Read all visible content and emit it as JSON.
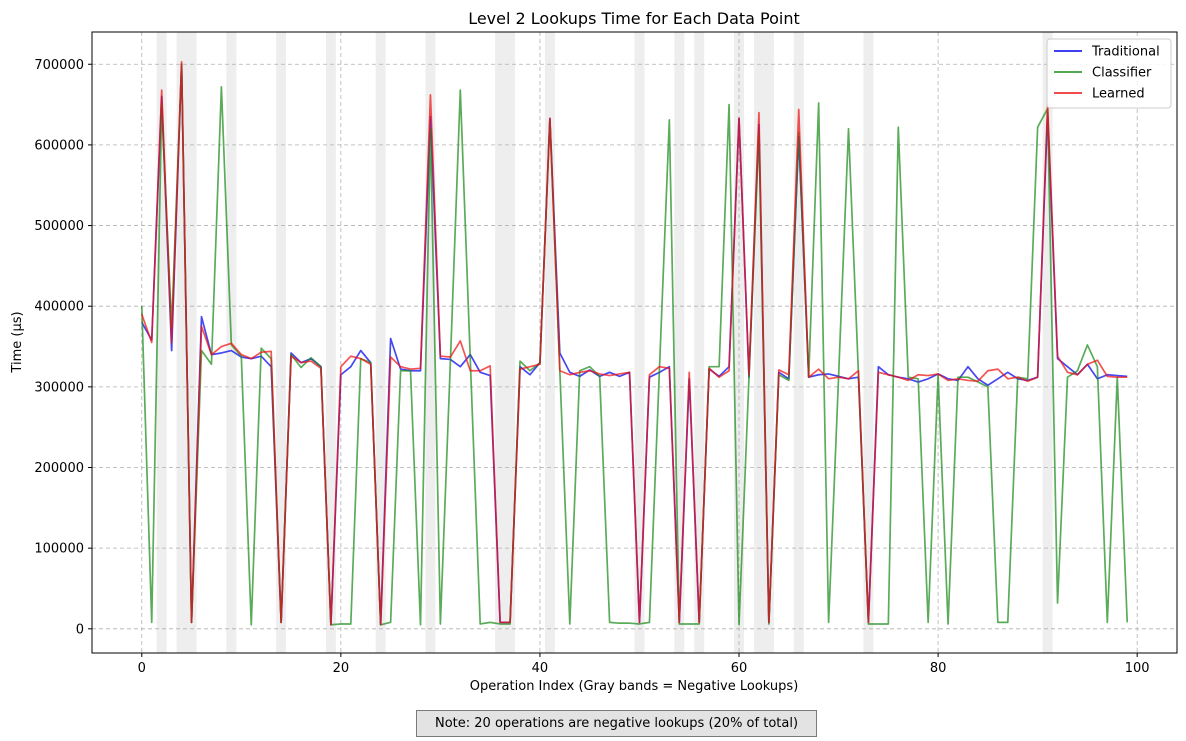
{
  "chart_data": {
    "type": "line",
    "title": "Level 2 Lookups Time for Each Data Point",
    "xlabel": "Operation Index (Gray bands = Negative Lookups)",
    "ylabel": "Time (µs)",
    "xlim": [
      -5,
      104
    ],
    "ylim": [
      -30000,
      740000
    ],
    "xticks": [
      0,
      20,
      40,
      60,
      80,
      100
    ],
    "yticks": [
      0,
      100000,
      200000,
      300000,
      400000,
      500000,
      600000,
      700000
    ],
    "grid": true,
    "legend_position": "top-right",
    "negative_lookup_indices": [
      2,
      4,
      5,
      9,
      14,
      19,
      24,
      29,
      36,
      37,
      41,
      50,
      54,
      56,
      60,
      62,
      63,
      66,
      73,
      91
    ],
    "x": [
      0,
      1,
      2,
      3,
      4,
      5,
      6,
      7,
      8,
      9,
      10,
      11,
      12,
      13,
      14,
      15,
      16,
      17,
      18,
      19,
      20,
      21,
      22,
      23,
      24,
      25,
      26,
      27,
      28,
      29,
      30,
      31,
      32,
      33,
      34,
      35,
      36,
      37,
      38,
      39,
      40,
      41,
      42,
      43,
      44,
      45,
      46,
      47,
      48,
      49,
      50,
      51,
      52,
      53,
      54,
      55,
      56,
      57,
      58,
      59,
      60,
      61,
      62,
      63,
      64,
      65,
      66,
      67,
      68,
      69,
      70,
      71,
      72,
      73,
      74,
      75,
      76,
      77,
      78,
      79,
      80,
      81,
      82,
      83,
      84,
      85,
      86,
      87,
      88,
      89,
      90,
      91,
      92,
      93,
      94,
      95,
      96,
      97,
      98,
      99
    ],
    "series": [
      {
        "name": "Traditional",
        "color": "#0000ee",
        "values": [
          380000,
          358000,
          660000,
          345000,
          700000,
          8000,
          387000,
          340000,
          342000,
          345000,
          337000,
          335000,
          338000,
          325000,
          8000,
          342000,
          330000,
          335000,
          325000,
          5000,
          315000,
          325000,
          345000,
          330000,
          5000,
          360000,
          322000,
          320000,
          320000,
          635000,
          335000,
          334000,
          325000,
          340000,
          318000,
          314000,
          8000,
          8000,
          325000,
          315000,
          330000,
          633000,
          342000,
          318000,
          313000,
          321000,
          313000,
          318000,
          313000,
          318000,
          8000,
          312000,
          318000,
          325000,
          8000,
          310000,
          8000,
          322000,
          313000,
          325000,
          633000,
          312000,
          625000,
          8000,
          318000,
          310000,
          610000,
          312000,
          315000,
          316000,
          313000,
          310000,
          312000,
          8000,
          325000,
          315000,
          312000,
          310000,
          306000,
          310000,
          316000,
          310000,
          308000,
          325000,
          310000,
          302000,
          310000,
          318000,
          310000,
          308000,
          312000,
          640000,
          335000,
          325000,
          315000,
          328000,
          310000,
          315000,
          314000,
          313000
        ]
      },
      {
        "name": "Classifier",
        "color": "#1a8a1a",
        "values": [
          400000,
          8000,
          650000,
          375000,
          700000,
          8000,
          345000,
          328000,
          672000,
          352000,
          338000,
          5000,
          348000,
          335000,
          8000,
          340000,
          324000,
          336000,
          325000,
          5000,
          6000,
          6000,
          335000,
          330000,
          5000,
          8000,
          320000,
          320000,
          5000,
          620000,
          6000,
          330000,
          668000,
          335000,
          6000,
          8000,
          6000,
          6000,
          332000,
          320000,
          330000,
          630000,
          320000,
          6000,
          320000,
          325000,
          313000,
          8000,
          7000,
          7000,
          6000,
          8000,
          320000,
          631000,
          6000,
          6000,
          6000,
          325000,
          325000,
          650000,
          5000,
          312000,
          615000,
          6000,
          315000,
          308000,
          615000,
          312000,
          652000,
          8000,
          312000,
          620000,
          315000,
          6000,
          6000,
          6000,
          622000,
          312000,
          310000,
          8000,
          315000,
          6000,
          312000,
          312000,
          306000,
          300000,
          8000,
          8000,
          312000,
          310000,
          622000,
          645000,
          32000,
          312000,
          320000,
          352000,
          325000,
          8000,
          312000,
          8000
        ]
      },
      {
        "name": "Learned",
        "color": "#ee1111",
        "values": [
          390000,
          355000,
          668000,
          355000,
          703000,
          8000,
          375000,
          340000,
          350000,
          354000,
          340000,
          335000,
          343000,
          344000,
          8000,
          338000,
          330000,
          332000,
          323000,
          5000,
          325000,
          338000,
          335000,
          328000,
          5000,
          337000,
          325000,
          322000,
          323000,
          662000,
          338000,
          337000,
          357000,
          320000,
          320000,
          326000,
          8000,
          8000,
          322000,
          325000,
          328000,
          633000,
          320000,
          315000,
          318000,
          320000,
          316000,
          314000,
          316000,
          318000,
          8000,
          315000,
          325000,
          323000,
          8000,
          318000,
          8000,
          323000,
          312000,
          320000,
          633000,
          315000,
          640000,
          8000,
          321000,
          315000,
          644000,
          312000,
          322000,
          310000,
          312000,
          310000,
          320000,
          8000,
          318000,
          315000,
          312000,
          308000,
          315000,
          314000,
          316000,
          308000,
          310000,
          308000,
          307000,
          320000,
          322000,
          310000,
          312000,
          307000,
          312000,
          650000,
          338000,
          318000,
          315000,
          328000,
          333000,
          313000,
          312000,
          312000
        ]
      }
    ],
    "note": "Note: 20 operations are negative lookups (20% of total)"
  }
}
